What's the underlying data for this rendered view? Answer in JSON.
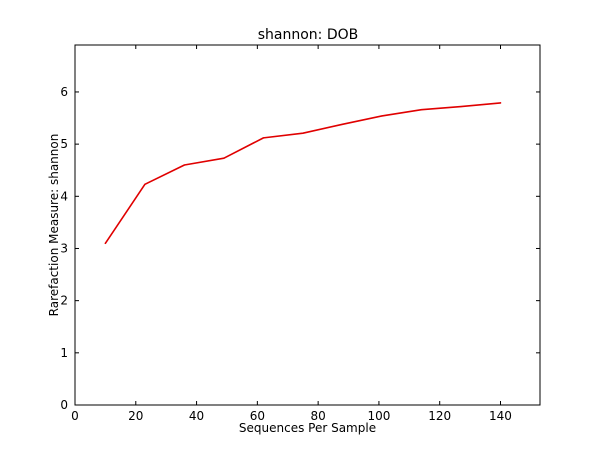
{
  "chart_data": {
    "type": "line",
    "title": "shannon: DOB",
    "xlabel": "Sequences Per Sample",
    "ylabel": "Rarefaction Measure: shannon",
    "xlim": [
      0,
      153
    ],
    "ylim": [
      0,
      6.9
    ],
    "x_ticks": [
      0,
      20,
      40,
      60,
      80,
      100,
      120,
      140
    ],
    "y_ticks": [
      0,
      1,
      2,
      3,
      4,
      5,
      6
    ],
    "grid": false,
    "series": [
      {
        "color": "#e00000",
        "x": [
          10,
          23,
          36,
          49,
          62,
          75,
          88,
          101,
          114,
          127,
          140
        ],
        "y": [
          3.1,
          4.23,
          4.6,
          4.73,
          5.12,
          5.21,
          5.38,
          5.54,
          5.66,
          5.72,
          5.79
        ]
      }
    ]
  }
}
